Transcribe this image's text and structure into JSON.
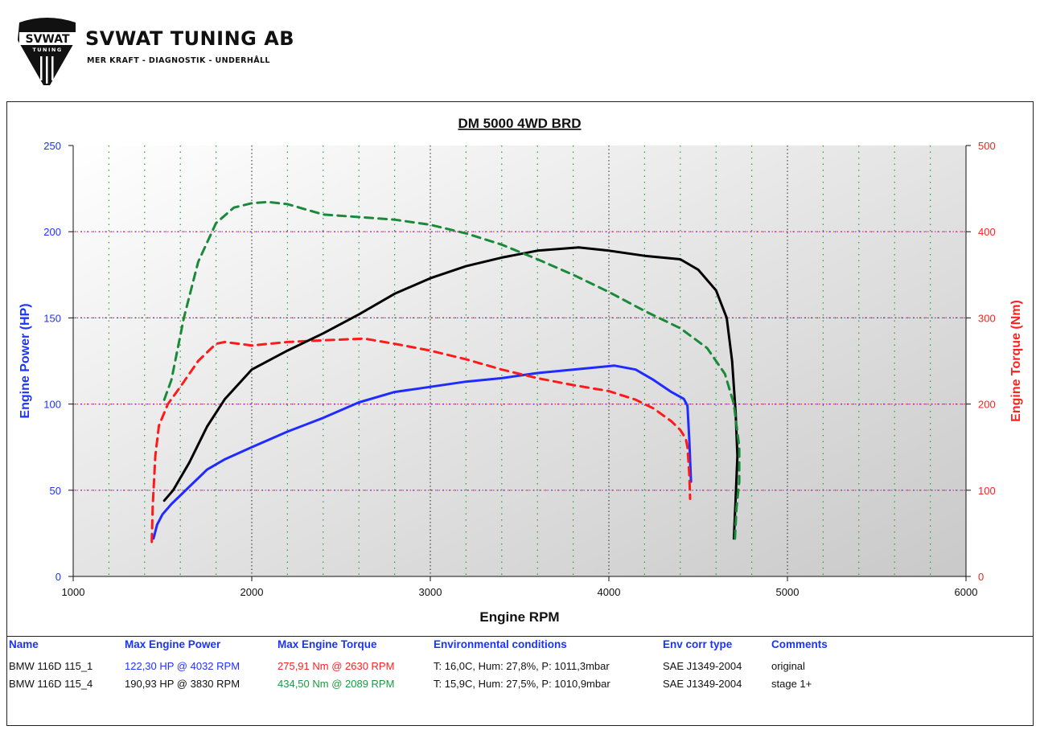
{
  "header": {
    "logo_badge_text": "SVWAT",
    "logo_badge_sub": "TUNING",
    "brand_name": "SVWAT TUNING AB",
    "tagline": "MER KRAFT - DIAGNOSTIK - UNDERHÅLL"
  },
  "colors": {
    "power_axis": "#1a33ff",
    "torque_axis": "#ff2020",
    "run1_power": "#1f2bff",
    "run1_torque": "#ff1a1a",
    "run2_power": "#000000",
    "run2_torque": "#1a8a3a",
    "plot_bg_dark": "#cfcfcf",
    "plot_bg_light": "#ffffff"
  },
  "chart_data": {
    "type": "line",
    "title": "DM 5000 4WD BRD",
    "xlabel": "Engine RPM",
    "ylabel_left": "Engine Power (HP)",
    "ylabel_right": "Engine Torque (Nm)",
    "xlim": [
      1000,
      6000
    ],
    "ylim_left": [
      0,
      250
    ],
    "ylim_right": [
      0,
      500
    ],
    "x_ticks": [
      1000,
      2000,
      3000,
      4000,
      5000,
      6000
    ],
    "y_ticks_left": [
      0,
      50,
      100,
      150,
      200,
      250
    ],
    "y_ticks_right": [
      0,
      100,
      200,
      300,
      400,
      500
    ],
    "grid": true,
    "series": [
      {
        "name": "BMW 116D 115_1",
        "quantity": "power",
        "axis": "left",
        "style": "solid",
        "color": "#1f2bff",
        "points": [
          [
            1450,
            22
          ],
          [
            1470,
            30
          ],
          [
            1500,
            36
          ],
          [
            1550,
            42
          ],
          [
            1650,
            52
          ],
          [
            1750,
            62
          ],
          [
            1850,
            68
          ],
          [
            2000,
            75
          ],
          [
            2200,
            84
          ],
          [
            2400,
            92
          ],
          [
            2600,
            101
          ],
          [
            2800,
            107
          ],
          [
            3000,
            110
          ],
          [
            3200,
            113
          ],
          [
            3400,
            115
          ],
          [
            3600,
            118
          ],
          [
            3800,
            120
          ],
          [
            4032,
            122.3
          ],
          [
            4150,
            120
          ],
          [
            4250,
            114
          ],
          [
            4350,
            107
          ],
          [
            4420,
            103
          ],
          [
            4440,
            99
          ],
          [
            4450,
            80
          ],
          [
            4460,
            55
          ]
        ]
      },
      {
        "name": "BMW 116D 115_1",
        "quantity": "torque",
        "axis": "right",
        "style": "dashed",
        "color": "#ff1a1a",
        "points": [
          [
            1440,
            40
          ],
          [
            1445,
            80
          ],
          [
            1460,
            140
          ],
          [
            1480,
            175
          ],
          [
            1530,
            200
          ],
          [
            1600,
            220
          ],
          [
            1700,
            250
          ],
          [
            1760,
            262
          ],
          [
            1800,
            270
          ],
          [
            1850,
            272
          ],
          [
            2000,
            268
          ],
          [
            2200,
            272
          ],
          [
            2400,
            274
          ],
          [
            2630,
            275.9
          ],
          [
            2800,
            270
          ],
          [
            3000,
            262
          ],
          [
            3200,
            252
          ],
          [
            3400,
            240
          ],
          [
            3600,
            230
          ],
          [
            3800,
            222
          ],
          [
            4000,
            215
          ],
          [
            4150,
            205
          ],
          [
            4250,
            195
          ],
          [
            4350,
            180
          ],
          [
            4400,
            170
          ],
          [
            4430,
            160
          ],
          [
            4440,
            150
          ],
          [
            4450,
            120
          ],
          [
            4455,
            90
          ]
        ]
      },
      {
        "name": "BMW 116D 115_4",
        "quantity": "power",
        "axis": "left",
        "style": "solid",
        "color": "#000000",
        "points": [
          [
            1510,
            44
          ],
          [
            1560,
            50
          ],
          [
            1650,
            66
          ],
          [
            1750,
            87
          ],
          [
            1850,
            103
          ],
          [
            2000,
            120
          ],
          [
            2200,
            131
          ],
          [
            2400,
            141
          ],
          [
            2600,
            152
          ],
          [
            2800,
            164
          ],
          [
            3000,
            173
          ],
          [
            3200,
            180
          ],
          [
            3400,
            185
          ],
          [
            3600,
            189
          ],
          [
            3830,
            190.9
          ],
          [
            4000,
            189
          ],
          [
            4200,
            186
          ],
          [
            4400,
            184
          ],
          [
            4500,
            178
          ],
          [
            4600,
            166
          ],
          [
            4660,
            150
          ],
          [
            4690,
            125
          ],
          [
            4710,
            95
          ],
          [
            4720,
            70
          ],
          [
            4710,
            45
          ],
          [
            4700,
            22
          ]
        ]
      },
      {
        "name": "BMW 116D 115_4",
        "quantity": "torque",
        "axis": "right",
        "style": "dashed",
        "color": "#1a8a3a",
        "points": [
          [
            1510,
            205
          ],
          [
            1550,
            228
          ],
          [
            1620,
            300
          ],
          [
            1700,
            365
          ],
          [
            1800,
            410
          ],
          [
            1900,
            428
          ],
          [
            2000,
            433
          ],
          [
            2089,
            434.5
          ],
          [
            2200,
            432
          ],
          [
            2400,
            420
          ],
          [
            2600,
            417
          ],
          [
            2800,
            414
          ],
          [
            3000,
            408
          ],
          [
            3200,
            398
          ],
          [
            3400,
            385
          ],
          [
            3600,
            368
          ],
          [
            3800,
            350
          ],
          [
            4000,
            330
          ],
          [
            4200,
            308
          ],
          [
            4400,
            288
          ],
          [
            4550,
            265
          ],
          [
            4650,
            235
          ],
          [
            4700,
            200
          ],
          [
            4730,
            150
          ],
          [
            4730,
            110
          ],
          [
            4715,
            80
          ],
          [
            4705,
            40
          ]
        ]
      }
    ]
  },
  "table": {
    "headers": [
      "Name",
      "Max Engine Power",
      "Max Engine Torque",
      "Environmental conditions",
      "Env corr type",
      "Comments"
    ],
    "rows": [
      {
        "name": "BMW 116D 115_1",
        "power": "122,30 HP @ 4032 RPM",
        "torque": "275,91 Nm @ 2630 RPM",
        "env": "T: 16,0C, Hum: 27,8%, P: 1011,3mbar",
        "corr": "SAE J1349-2004",
        "comment": "original"
      },
      {
        "name": "BMW 116D 115_4",
        "power": "190,93 HP @ 3830 RPM",
        "torque": "434,50 Nm @ 2089 RPM",
        "env": "T: 15,9C, Hum: 27,5%, P: 1010,9mbar",
        "corr": "SAE J1349-2004",
        "comment": "stage 1+"
      }
    ]
  }
}
